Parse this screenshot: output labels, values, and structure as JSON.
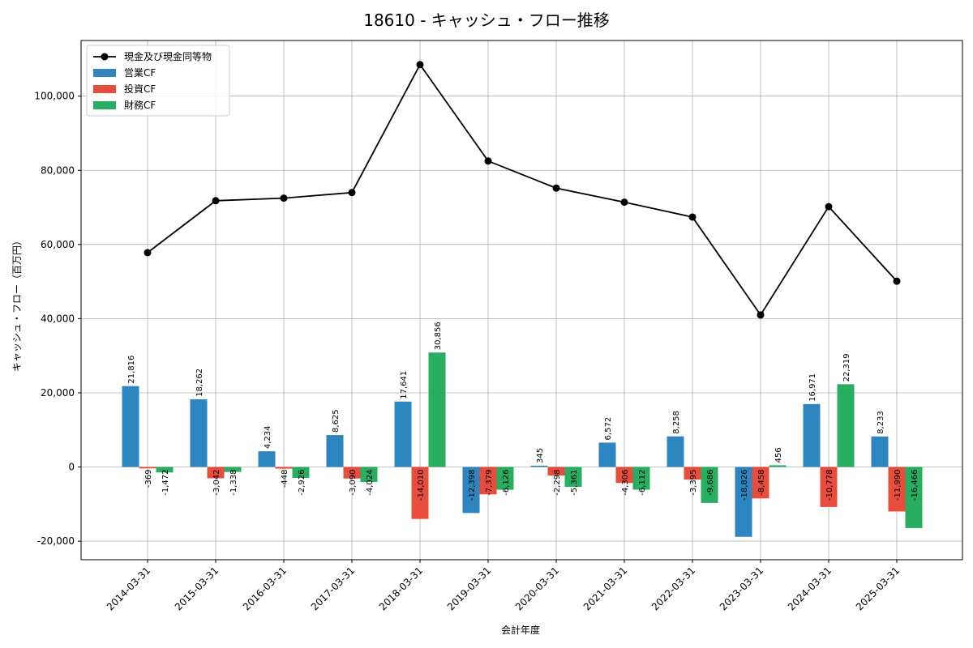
{
  "chart_data": {
    "type": "bar",
    "title": "18610 - キャッシュ・フロー推移",
    "xlabel": "会計年度",
    "ylabel": "キャッシュ・フロー（百万円）",
    "ylim": [
      -25000,
      115000
    ],
    "yticks": [
      -20000,
      0,
      20000,
      40000,
      60000,
      80000,
      100000
    ],
    "ytick_labels": [
      "-20,000",
      "0",
      "20,000",
      "40,000",
      "60,000",
      "80,000",
      "100,000"
    ],
    "grid": true,
    "legend_position": "top-left",
    "categories": [
      "2014-03-31",
      "2015-03-31",
      "2016-03-31",
      "2017-03-31",
      "2018-03-31",
      "2019-03-31",
      "2020-03-31",
      "2021-03-31",
      "2022-03-31",
      "2023-03-31",
      "2024-03-31",
      "2025-03-31"
    ],
    "series": [
      {
        "name": "営業CF",
        "type": "bar",
        "color": "#2e86c1",
        "values": [
          21816,
          18262,
          4234,
          8625,
          17641,
          -12398,
          345,
          6572,
          8258,
          -18826,
          16971,
          8233
        ],
        "labels": [
          "21,816",
          "18,262",
          "4,234",
          "8,625",
          "17,641",
          "-12,398",
          "345",
          "6,572",
          "8,258",
          "-18,826",
          "16,971",
          "8,233"
        ]
      },
      {
        "name": "投資CF",
        "type": "bar",
        "color": "#e74c3c",
        "values": [
          -369,
          -3042,
          -448,
          -3090,
          -14010,
          -7379,
          -2298,
          -4306,
          -3395,
          -8458,
          -10778,
          -11990
        ],
        "labels": [
          "-369",
          "-3,042",
          "-448",
          "-3,090",
          "-14,010",
          "-7,379",
          "-2,298",
          "-4,306",
          "-3,395",
          "-8,458",
          "-10,778",
          "-11,990"
        ]
      },
      {
        "name": "財務CF",
        "type": "bar",
        "color": "#27ae60",
        "values": [
          -1472,
          -1338,
          -2926,
          -4024,
          30856,
          -6126,
          -5361,
          -6112,
          -9686,
          456,
          22319,
          -16466
        ],
        "labels": [
          "-1,472",
          "-1,338",
          "-2,926",
          "-4,024",
          "30,856",
          "-6,126",
          "-5,361",
          "-6,112",
          "-9,686",
          "456",
          "22,319",
          "-16,466"
        ]
      },
      {
        "name": "現金及び現金同等物",
        "type": "line",
        "color": "#000000",
        "values": [
          57800,
          71800,
          72500,
          74000,
          108500,
          82500,
          75200,
          71400,
          67400,
          41000,
          70200,
          50100
        ]
      }
    ]
  }
}
